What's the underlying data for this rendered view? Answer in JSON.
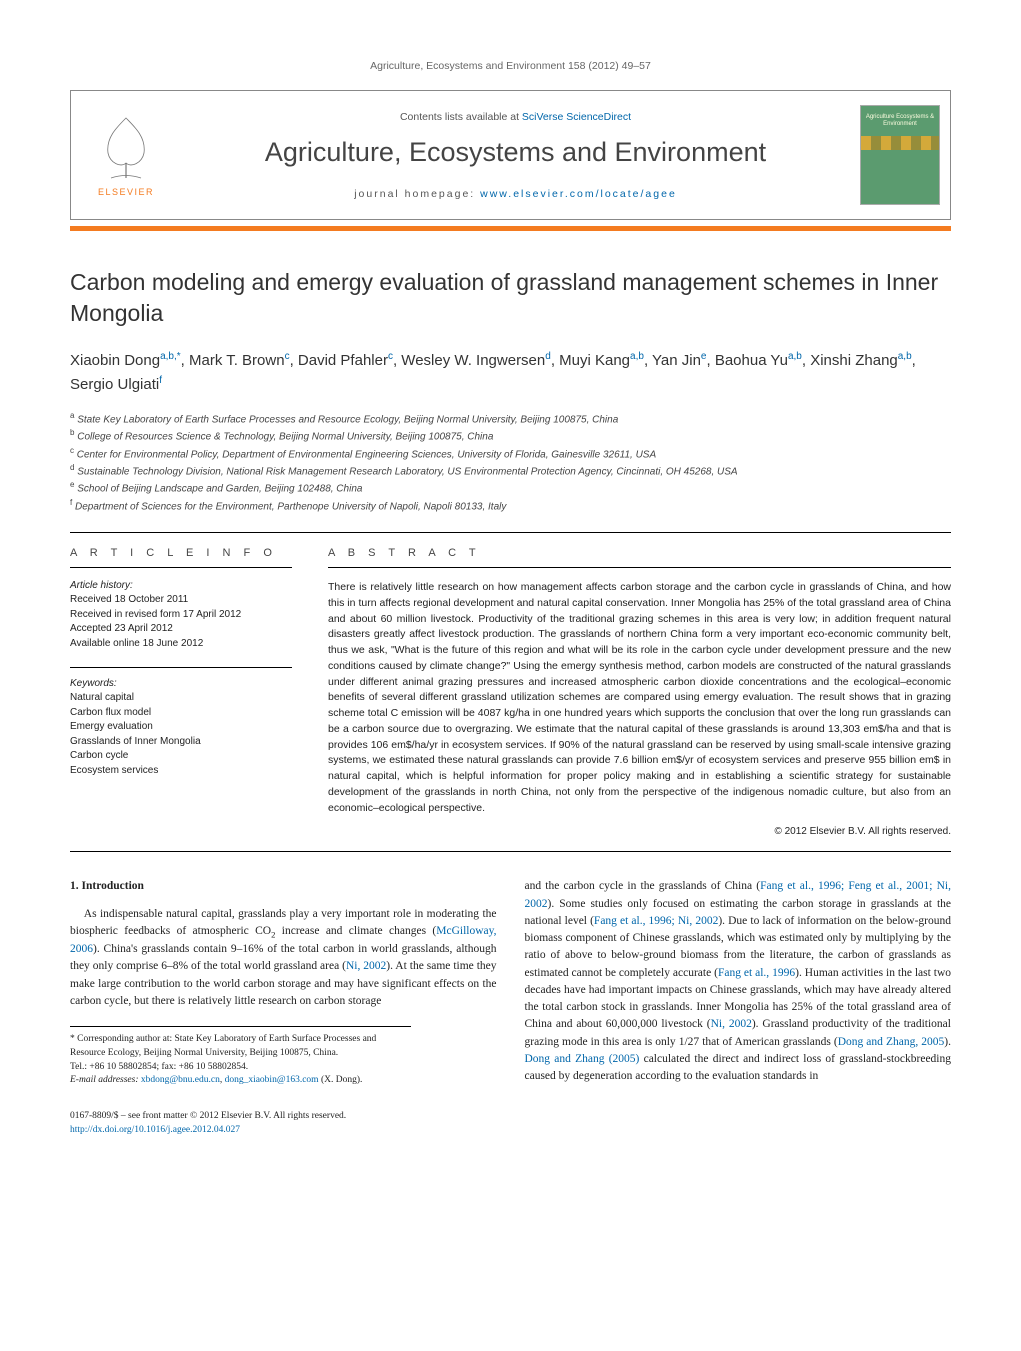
{
  "running_head": "Agriculture, Ecosystems and Environment 158 (2012) 49–57",
  "masthead": {
    "contents_prefix": "Contents lists available at ",
    "contents_link": "SciVerse ScienceDirect",
    "journal": "Agriculture, Ecosystems and Environment",
    "homepage_prefix": "journal homepage: ",
    "homepage_link": "www.elsevier.com/locate/agee",
    "elsevier_word": "ELSEVIER",
    "cover_txt": "Agriculture Ecosystems & Environment"
  },
  "title": "Carbon modeling and emergy evaluation of grassland management schemes in Inner Mongolia",
  "authors_html": "Xiaobin Dong<sup>a,b,*</sup>, Mark T. Brown<sup>c</sup>, David Pfahler<sup>c</sup>, Wesley W. Ingwersen<sup>d</sup>, Muyi Kang<sup>a,b</sup>, Yan Jin<sup>e</sup>, Baohua Yu<sup>a,b</sup>, Xinshi Zhang<sup>a,b</sup>, Sergio Ulgiati<sup>f</sup>",
  "affiliations": [
    "a State Key Laboratory of Earth Surface Processes and Resource Ecology, Beijing Normal University, Beijing 100875, China",
    "b College of Resources Science & Technology, Beijing Normal University, Beijing 100875, China",
    "c Center for Environmental Policy, Department of Environmental Engineering Sciences, University of Florida, Gainesville 32611, USA",
    "d Sustainable Technology Division, National Risk Management Research Laboratory, US Environmental Protection Agency, Cincinnati, OH 45268, USA",
    "e School of Beijing Landscape and Garden, Beijing 102488, China",
    "f Department of Sciences for the Environment, Parthenope University of Napoli, Napoli 80133, Italy"
  ],
  "info": {
    "label": "A R T I C L E   I N F O",
    "history_head": "Article history:",
    "history": [
      "Received 18 October 2011",
      "Received in revised form 17 April 2012",
      "Accepted 23 April 2012",
      "Available online 18 June 2012"
    ],
    "keywords_head": "Keywords:",
    "keywords": [
      "Natural capital",
      "Carbon flux model",
      "Emergy evaluation",
      "Grasslands of Inner Mongolia",
      "Carbon cycle",
      "Ecosystem services"
    ]
  },
  "abstract": {
    "label": "A B S T R A C T",
    "text": "There is relatively little research on how management affects carbon storage and the carbon cycle in grasslands of China, and how this in turn affects regional development and natural capital conservation. Inner Mongolia has 25% of the total grassland area of China and about 60 million livestock. Productivity of the traditional grazing schemes in this area is very low; in addition frequent natural disasters greatly affect livestock production. The grasslands of northern China form a very important eco-economic community belt, thus we ask, \"What is the future of this region and what will be its role in the carbon cycle under development pressure and the new conditions caused by climate change?\" Using the emergy synthesis method, carbon models are constructed of the natural grasslands under different animal grazing pressures and increased atmospheric carbon dioxide concentrations and the ecological–economic benefits of several different grassland utilization schemes are compared using emergy evaluation. The result shows that in grazing scheme total C emission will be 4087 kg/ha in one hundred years which supports the conclusion that over the long run grasslands can be a carbon source due to overgrazing. We estimate that the natural capital of these grasslands is around 13,303 em$/ha and that is provides 106 em$/ha/yr in ecosystem services. If 90% of the natural grassland can be reserved by using small-scale intensive grazing systems, we estimated these natural grasslands can provide 7.6 billion em$/yr of ecosystem services and preserve 955 billion em$ in natural capital, which is helpful information for proper policy making and in establishing a scientific strategy for sustainable development of the grasslands in north China, not only from the perspective of the indigenous nomadic culture, but also from an economic–ecological perspective.",
    "copyright": "© 2012 Elsevier B.V. All rights reserved."
  },
  "body": {
    "section_head": "1.  Introduction",
    "col1_p1_pre": "As indispensable natural capital, grasslands play a very important role in moderating the biospheric feedbacks of atmospheric CO",
    "col1_p1_post": " increase and climate changes (",
    "col1_cite1": "McGilloway, 2006",
    "col1_p1_b": "). China's grasslands contain 9–16% of the total carbon in world grasslands, although they only comprise 6–8% of the total world grassland area (",
    "col1_cite2": "Ni, 2002",
    "col1_p1_c": "). At the same time they make large contribution to the world carbon storage and may have significant effects on the carbon cycle, but there is relatively little research on carbon storage",
    "col2_pre": "and the carbon cycle in the grasslands of China (",
    "col2_cite1": "Fang et al., 1996; Feng et al., 2001; Ni, 2002",
    "col2_a": "). Some studies only focused on estimating the carbon storage in grasslands at the national level (",
    "col2_cite2": "Fang et al., 1996; Ni, 2002",
    "col2_b": "). Due to lack of information on the below-ground biomass component of Chinese grasslands, which was estimated only by multiplying by the ratio of above to below-ground biomass from the literature, the carbon of grasslands as estimated cannot be completely accurate (",
    "col2_cite3": "Fang et al., 1996",
    "col2_c": "). Human activities in the last two decades have had important impacts on Chinese grasslands, which may have already altered the total carbon stock in grasslands. Inner Mongolia has 25% of the total grassland area of China and about 60,000,000 livestock (",
    "col2_cite4": "Ni, 2002",
    "col2_d": "). Grassland productivity of the traditional grazing mode in this area is only 1/27 that of American grasslands (",
    "col2_cite5": "Dong and Zhang, 2005",
    "col2_e": "). ",
    "col2_cite6": "Dong and Zhang (2005)",
    "col2_f": " calculated the direct and indirect loss of grassland-stockbreeding caused by degeneration according to the evaluation standards in"
  },
  "footnotes": {
    "corr": "* Corresponding author at: State Key Laboratory of Earth Surface Processes and Resource Ecology, Beijing Normal University, Beijing 100875, China.",
    "tel": "Tel.: +86 10 58802854; fax: +86 10 58802854.",
    "email_label": "E-mail addresses: ",
    "email1": "xbdong@bnu.edu.cn",
    "email_sep": ", ",
    "email2": "dong_xiaobin@163.com",
    "email_who": " (X. Dong)."
  },
  "pagefoot": {
    "line1": "0167-8809/$ – see front matter © 2012 Elsevier B.V. All rights reserved.",
    "doi": "http://dx.doi.org/10.1016/j.agee.2012.04.027"
  },
  "colors": {
    "orange": "#f47b20",
    "link": "#0066aa",
    "cover_bg": "#5b9b6f"
  }
}
